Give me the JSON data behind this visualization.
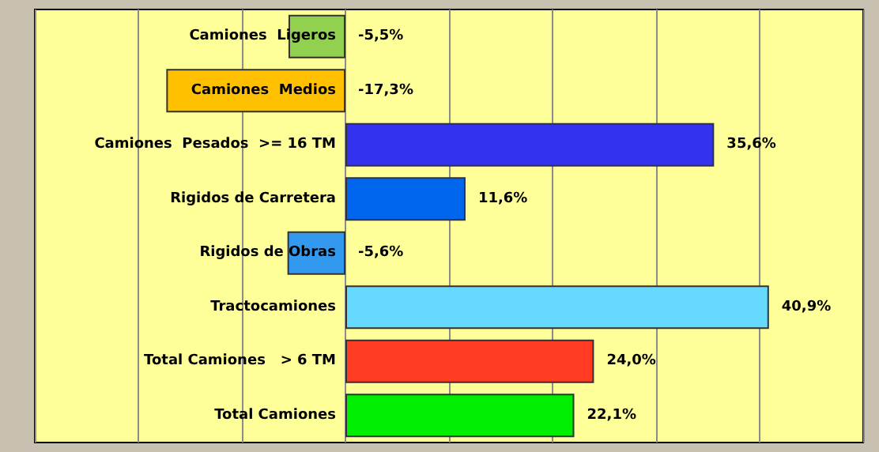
{
  "chart_data": {
    "type": "bar",
    "orientation": "horizontal",
    "categories": [
      "Camiones  Ligeros",
      "Camiones  Medios",
      "Camiones  Pesados  >= 16 TM",
      "Rigidos de Carretera",
      "Rigidos de Obras",
      "Tractocamiones",
      "Total Camiones   > 6 TM",
      "Total Camiones"
    ],
    "values": [
      -5.5,
      -17.3,
      35.6,
      11.6,
      -5.6,
      40.9,
      24.0,
      22.1
    ],
    "colors": [
      "#92d050",
      "#ffc000",
      "#3333ee",
      "#0066ee",
      "#3399ee",
      "#66d9ff",
      "#ff3b22",
      "#00ee00"
    ],
    "value_labels": [
      "-5,5%",
      "-17,3%",
      "35,6%",
      "11,6%",
      "-5,6%",
      "40,9%",
      "24,0%",
      "22,1%"
    ],
    "xlim": [
      -30,
      50
    ],
    "xticks": [
      {
        "value": -30,
        "label": null
      },
      {
        "value": -20,
        "label": null
      },
      {
        "value": -10,
        "label": null
      },
      {
        "value": 0,
        "label": null
      },
      {
        "value": 10,
        "label": null
      },
      {
        "value": 20,
        "label": null
      },
      {
        "value": 30,
        "label": null
      },
      {
        "value": 40,
        "label": null
      },
      {
        "value": 50,
        "label": null
      }
    ],
    "grid": "x"
  }
}
